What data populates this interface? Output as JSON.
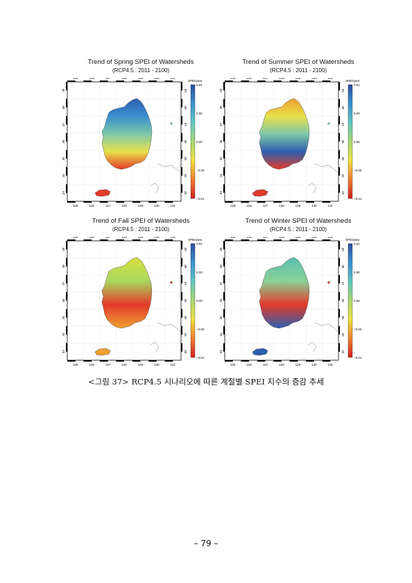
{
  "figure": {
    "panels": [
      {
        "id": "spring",
        "title": "Trend of Spring SPEI of Watersheds",
        "subtitle": "(RCP4.5 : 2011 - 2100)",
        "lon_ticks": [
          "125",
          "126",
          "127",
          "128",
          "129",
          "130",
          "131"
        ],
        "lat_ticks": [
          "33",
          "34",
          "35",
          "36",
          "37",
          "38",
          "39"
        ],
        "colorbar": {
          "title": "SPEI/year",
          "ticks": [
            "0.01",
            "0.00",
            "0.00",
            "−0.00",
            "−0.01"
          ]
        },
        "dominant_colors": [
          "#2d5fb0",
          "#3a8fd0",
          "#7fc8a8",
          "#e8e04a",
          "#e23a2a"
        ]
      },
      {
        "id": "summer",
        "title": "Trend of Summer SPEI of Watersheds",
        "subtitle": "(RCP4.5 : 2011 - 2100)",
        "lon_ticks": [
          "125",
          "126",
          "127",
          "128",
          "129",
          "130",
          "131"
        ],
        "lat_ticks": [
          "33",
          "34",
          "35",
          "36",
          "37",
          "38",
          "39"
        ],
        "colorbar": {
          "title": "SPEI/year",
          "ticks": [
            "0.01",
            "0.00",
            "0.00",
            "−0.00",
            "−0.01"
          ]
        },
        "dominant_colors": [
          "#f0a030",
          "#e8e04a",
          "#7fc8a8",
          "#2d5fb0",
          "#e23a2a"
        ]
      },
      {
        "id": "fall",
        "title": "Trend of Fall SPEI of Watersheds",
        "subtitle": "(RCP4.5 : 2011 - 2100)",
        "lon_ticks": [
          "125",
          "126",
          "127",
          "128",
          "129",
          "130",
          "131"
        ],
        "lat_ticks": [
          "33",
          "34",
          "35",
          "36",
          "37",
          "38",
          "39"
        ],
        "colorbar": {
          "title": "SPEI/year",
          "ticks": [
            "0.01",
            "0.00",
            "0.00",
            "−0.00",
            "−0.01"
          ]
        },
        "dominant_colors": [
          "#d8e040",
          "#a8d860",
          "#e23a2a",
          "#f0a030"
        ]
      },
      {
        "id": "winter",
        "title": "Trend of Winter SPEI of Watersheds",
        "subtitle": "(RCP4.5 : 2011 - 2100)",
        "lon_ticks": [
          "125",
          "126",
          "127",
          "128",
          "129",
          "130",
          "131"
        ],
        "lat_ticks": [
          "33",
          "34",
          "35",
          "36",
          "37",
          "38",
          "39"
        ],
        "colorbar": {
          "title": "SPEI/year",
          "ticks": [
            "0.01",
            "0.00",
            "0.00",
            "−0.00",
            "−0.01"
          ]
        },
        "dominant_colors": [
          "#5cc0b0",
          "#8ad098",
          "#e23a2a",
          "#2d5fb0"
        ]
      }
    ],
    "caption": "<그림 37> RCP4.5 시나리오에 따른 계절별 SPEI 지수의 증감 추세"
  },
  "page": {
    "number": "– 79 –"
  }
}
